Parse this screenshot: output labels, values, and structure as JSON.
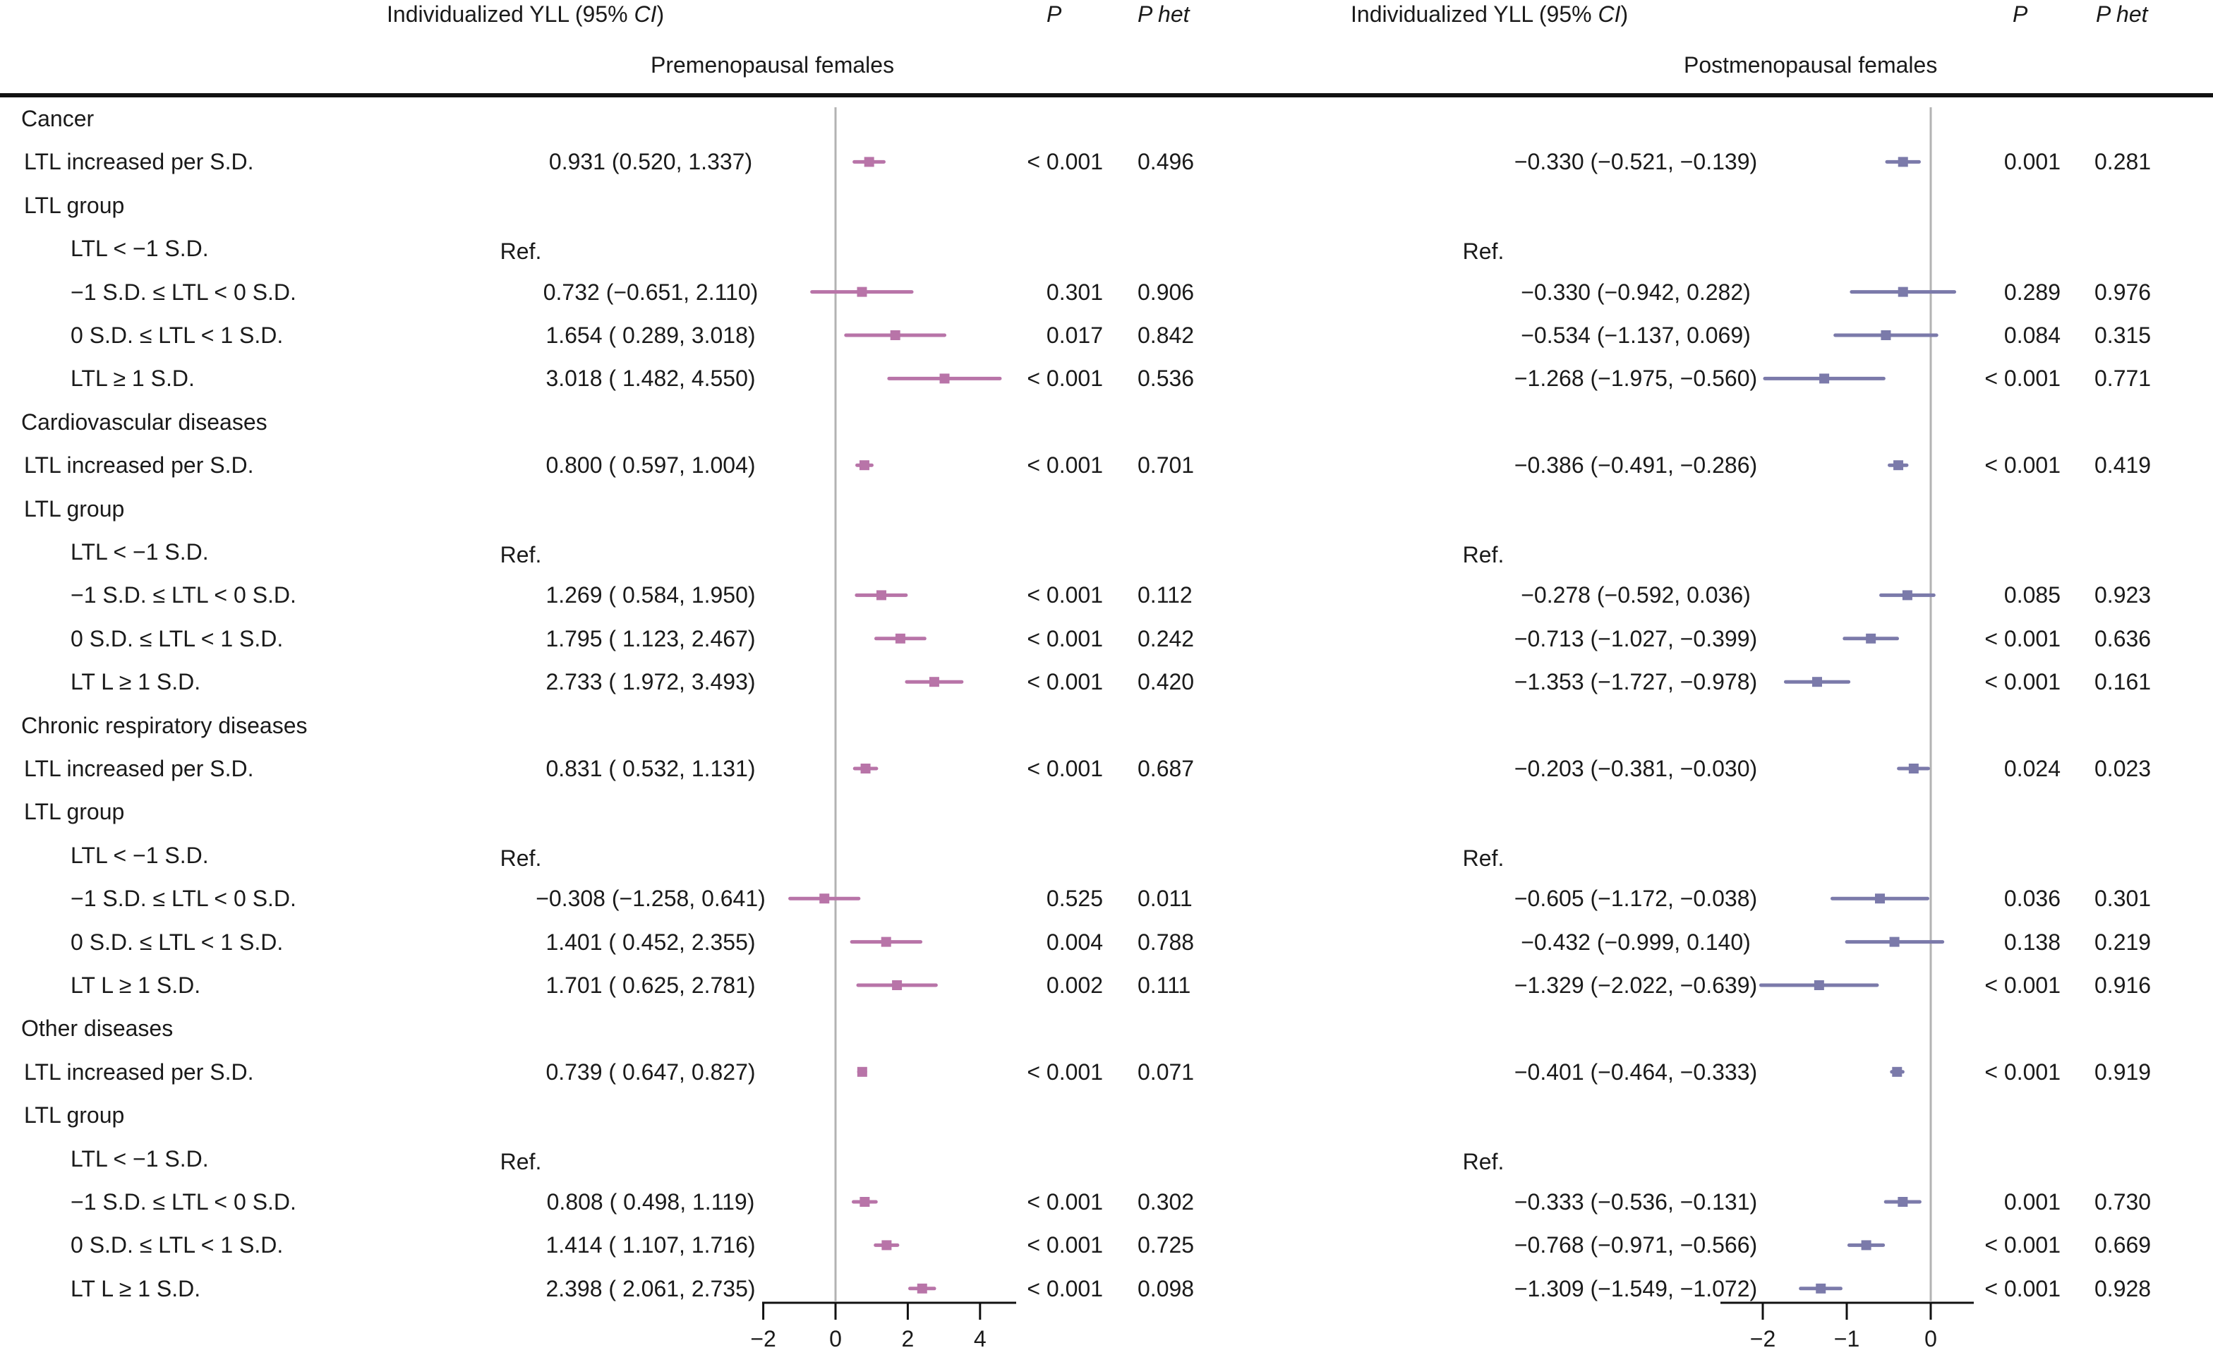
{
  "header": {
    "left": {
      "ci_label_prefix": "Individualized YLL  (95% ",
      "ci_label_ci": "CI",
      "ci_label_suffix": ")",
      "p": "P",
      "phet": "P het",
      "group_title": "Premenopausal  females"
    },
    "right": {
      "ci_label_prefix": "Individualized  YLL  (95% ",
      "ci_label_ci": "CI",
      "ci_label_suffix": ")",
      "p": "P",
      "phet": "P het",
      "group_title": "Postmenopausal females"
    }
  },
  "colors": {
    "premenopausal": "#b874a8",
    "postmenopausal": "#7b7aaa",
    "reference_line": "#b3b3b3",
    "axis": "#111111"
  },
  "chart_data": {
    "type": "forest",
    "title": "",
    "panels": [
      {
        "name": "Premenopausal females",
        "xlim": [
          -2,
          5
        ],
        "ticks": [
          -2,
          0,
          2,
          4
        ],
        "tick_labels": [
          "−2",
          "0",
          "2",
          "4"
        ],
        "reference": 0
      },
      {
        "name": "Postmenopausal females",
        "xlim": [
          -2.5,
          0.5
        ],
        "ticks": [
          -2,
          -1,
          0
        ],
        "tick_labels": [
          "−2",
          "−1",
          "0"
        ],
        "reference": 0
      }
    ],
    "rows": [
      {
        "kind": "section",
        "label": "Cancer"
      },
      {
        "kind": "item",
        "indent": 0,
        "label": "LTL increased per S.D.",
        "pre": {
          "est": 0.931,
          "lo": 0.52,
          "hi": 1.337,
          "text": "0.931 (0.520, 1.337)",
          "p": "< 0.001",
          "phet": "0.496"
        },
        "post": {
          "est": -0.33,
          "lo": -0.521,
          "hi": -0.139,
          "text": "−0.330 (−0.521, −0.139)",
          "p": "0.001",
          "phet": "0.281"
        }
      },
      {
        "kind": "subsection",
        "label": "LTL group"
      },
      {
        "kind": "ref",
        "indent": 1,
        "label": "LTL < −1 S.D.",
        "pre": {
          "text": "Ref."
        },
        "post": {
          "text": "Ref."
        }
      },
      {
        "kind": "item",
        "indent": 1,
        "label": "−1 S.D. ≤ LTL < 0 S.D.",
        "pre": {
          "est": 0.732,
          "lo": -0.651,
          "hi": 2.11,
          "text": "0.732 (−0.651, 2.110)",
          "p": "0.301",
          "phet": "0.906"
        },
        "post": {
          "est": -0.33,
          "lo": -0.942,
          "hi": 0.282,
          "text": "−0.330 (−0.942, 0.282)",
          "p": "0.289",
          "phet": "0.976"
        }
      },
      {
        "kind": "item",
        "indent": 1,
        "label": "0 S.D. ≤ LTL < 1 S.D.",
        "pre": {
          "est": 1.654,
          "lo": 0.289,
          "hi": 3.018,
          "text": "1.654 ( 0.289, 3.018)",
          "p": "0.017",
          "phet": "0.842"
        },
        "post": {
          "est": -0.534,
          "lo": -1.137,
          "hi": 0.069,
          "text": "−0.534 (−1.137, 0.069)",
          "p": "0.084",
          "phet": "0.315"
        }
      },
      {
        "kind": "item",
        "indent": 1,
        "label": "LTL ≥ 1 S.D.",
        "pre": {
          "est": 3.018,
          "lo": 1.482,
          "hi": 4.55,
          "text": "3.018 ( 1.482, 4.550)",
          "p": "< 0.001",
          "phet": "0.536"
        },
        "post": {
          "est": -1.268,
          "lo": -1.975,
          "hi": -0.56,
          "text": "−1.268 (−1.975, −0.560)",
          "p": "< 0.001",
          "phet": "0.771"
        }
      },
      {
        "kind": "section",
        "label": "Cardiovascular diseases"
      },
      {
        "kind": "item",
        "indent": 0,
        "label": "LTL increased per S.D.",
        "pre": {
          "est": 0.8,
          "lo": 0.597,
          "hi": 1.004,
          "text": "0.800 ( 0.597, 1.004)",
          "p": "< 0.001",
          "phet": "0.701"
        },
        "post": {
          "est": -0.386,
          "lo": -0.491,
          "hi": -0.286,
          "text": "−0.386 (−0.491, −0.286)",
          "p": "< 0.001",
          "phet": "0.419"
        }
      },
      {
        "kind": "subsection",
        "label": "LTL group"
      },
      {
        "kind": "ref",
        "indent": 1,
        "label": "LTL < −1 S.D.",
        "pre": {
          "text": "Ref."
        },
        "post": {
          "text": "Ref."
        }
      },
      {
        "kind": "item",
        "indent": 1,
        "label": "−1 S.D. ≤ LTL < 0 S.D.",
        "pre": {
          "est": 1.269,
          "lo": 0.584,
          "hi": 1.95,
          "text": "1.269 ( 0.584, 1.950)",
          "p": "< 0.001",
          "phet": "0.112"
        },
        "post": {
          "est": -0.278,
          "lo": -0.592,
          "hi": 0.036,
          "text": "−0.278 (−0.592, 0.036)",
          "p": "0.085",
          "phet": "0.923"
        }
      },
      {
        "kind": "item",
        "indent": 1,
        "label": "0 S.D. ≤ LTL < 1 S.D.",
        "pre": {
          "est": 1.795,
          "lo": 1.123,
          "hi": 2.467,
          "text": "1.795 ( 1.123, 2.467)",
          "p": "< 0.001",
          "phet": "0.242"
        },
        "post": {
          "est": -0.713,
          "lo": -1.027,
          "hi": -0.399,
          "text": "−0.713 (−1.027, −0.399)",
          "p": "< 0.001",
          "phet": "0.636"
        }
      },
      {
        "kind": "item",
        "indent": 1,
        "label": "LT L ≥ 1 S.D.",
        "pre": {
          "est": 2.733,
          "lo": 1.972,
          "hi": 3.493,
          "text": "2.733 ( 1.972, 3.493)",
          "p": "< 0.001",
          "phet": "0.420"
        },
        "post": {
          "est": -1.353,
          "lo": -1.727,
          "hi": -0.978,
          "text": "−1.353 (−1.727, −0.978)",
          "p": "< 0.001",
          "phet": "0.161"
        }
      },
      {
        "kind": "section",
        "label": "Chronic respiratory diseases"
      },
      {
        "kind": "item",
        "indent": 0,
        "label": "LTL increased per S.D.",
        "pre": {
          "est": 0.831,
          "lo": 0.532,
          "hi": 1.131,
          "text": "0.831 ( 0.532, 1.131)",
          "p": "< 0.001",
          "phet": "0.687"
        },
        "post": {
          "est": -0.203,
          "lo": -0.381,
          "hi": -0.03,
          "text": "−0.203 (−0.381, −0.030)",
          "p": "0.024",
          "phet": "0.023"
        }
      },
      {
        "kind": "subsection",
        "label": "LTL group"
      },
      {
        "kind": "ref",
        "indent": 1,
        "label": "LTL < −1 S.D.",
        "pre": {
          "text": "Ref."
        },
        "post": {
          "text": "Ref."
        }
      },
      {
        "kind": "item",
        "indent": 1,
        "label": "−1 S.D. ≤ LTL < 0 S.D.",
        "pre": {
          "est": -0.308,
          "lo": -1.258,
          "hi": 0.641,
          "text": "−0.308 (−1.258, 0.641)",
          "p": "0.525",
          "phet": "0.011"
        },
        "post": {
          "est": -0.605,
          "lo": -1.172,
          "hi": -0.038,
          "text": "−0.605 (−1.172, −0.038)",
          "p": "0.036",
          "phet": "0.301"
        }
      },
      {
        "kind": "item",
        "indent": 1,
        "label": "0 S.D. ≤ LTL < 1 S.D.",
        "pre": {
          "est": 1.401,
          "lo": 0.452,
          "hi": 2.355,
          "text": "1.401 ( 0.452, 2.355)",
          "p": "0.004",
          "phet": "0.788"
        },
        "post": {
          "est": -0.432,
          "lo": -0.999,
          "hi": 0.14,
          "text": "−0.432 (−0.999, 0.140)",
          "p": "0.138",
          "phet": "0.219"
        }
      },
      {
        "kind": "item",
        "indent": 1,
        "label": "LT L ≥ 1 S.D.",
        "pre": {
          "est": 1.701,
          "lo": 0.625,
          "hi": 2.781,
          "text": "1.701 ( 0.625, 2.781)",
          "p": "0.002",
          "phet": "0.111"
        },
        "post": {
          "est": -1.329,
          "lo": -2.022,
          "hi": -0.639,
          "text": "−1.329 (−2.022, −0.639)",
          "p": "< 0.001",
          "phet": "0.916"
        }
      },
      {
        "kind": "section",
        "label": "Other diseases"
      },
      {
        "kind": "item",
        "indent": 0,
        "label": "LTL increased per S.D.",
        "pre": {
          "est": 0.739,
          "lo": 0.647,
          "hi": 0.827,
          "text": "0.739 ( 0.647, 0.827)",
          "p": "< 0.001",
          "phet": "0.071"
        },
        "post": {
          "est": -0.401,
          "lo": -0.464,
          "hi": -0.333,
          "text": "−0.401 (−0.464, −0.333)",
          "p": "< 0.001",
          "phet": "0.919"
        }
      },
      {
        "kind": "subsection",
        "label": "LTL group"
      },
      {
        "kind": "ref",
        "indent": 1,
        "label": "LTL < −1 S.D.",
        "pre": {
          "text": "Ref."
        },
        "post": {
          "text": "Ref."
        }
      },
      {
        "kind": "item",
        "indent": 1,
        "label": "−1 S.D. ≤ LTL < 0 S.D.",
        "pre": {
          "est": 0.808,
          "lo": 0.498,
          "hi": 1.119,
          "text": "0.808 ( 0.498, 1.119)",
          "p": "< 0.001",
          "phet": "0.302"
        },
        "post": {
          "est": -0.333,
          "lo": -0.536,
          "hi": -0.131,
          "text": "−0.333 (−0.536, −0.131)",
          "p": "0.001",
          "phet": "0.730"
        }
      },
      {
        "kind": "item",
        "indent": 1,
        "label": "0 S.D. ≤ LTL < 1 S.D.",
        "pre": {
          "est": 1.414,
          "lo": 1.107,
          "hi": 1.716,
          "text": "1.414 ( 1.107, 1.716)",
          "p": "< 0.001",
          "phet": "0.725"
        },
        "post": {
          "est": -0.768,
          "lo": -0.971,
          "hi": -0.566,
          "text": "−0.768 (−0.971, −0.566)",
          "p": "< 0.001",
          "phet": "0.669"
        }
      },
      {
        "kind": "item",
        "indent": 1,
        "label": "LT L ≥ 1 S.D.",
        "pre": {
          "est": 2.398,
          "lo": 2.061,
          "hi": 2.735,
          "text": "2.398 ( 2.061, 2.735)",
          "p": "< 0.001",
          "phet": "0.098"
        },
        "post": {
          "est": -1.309,
          "lo": -1.549,
          "hi": -1.072,
          "text": "−1.309 (−1.549, −1.072)",
          "p": "< 0.001",
          "phet": "0.928"
        }
      }
    ]
  }
}
